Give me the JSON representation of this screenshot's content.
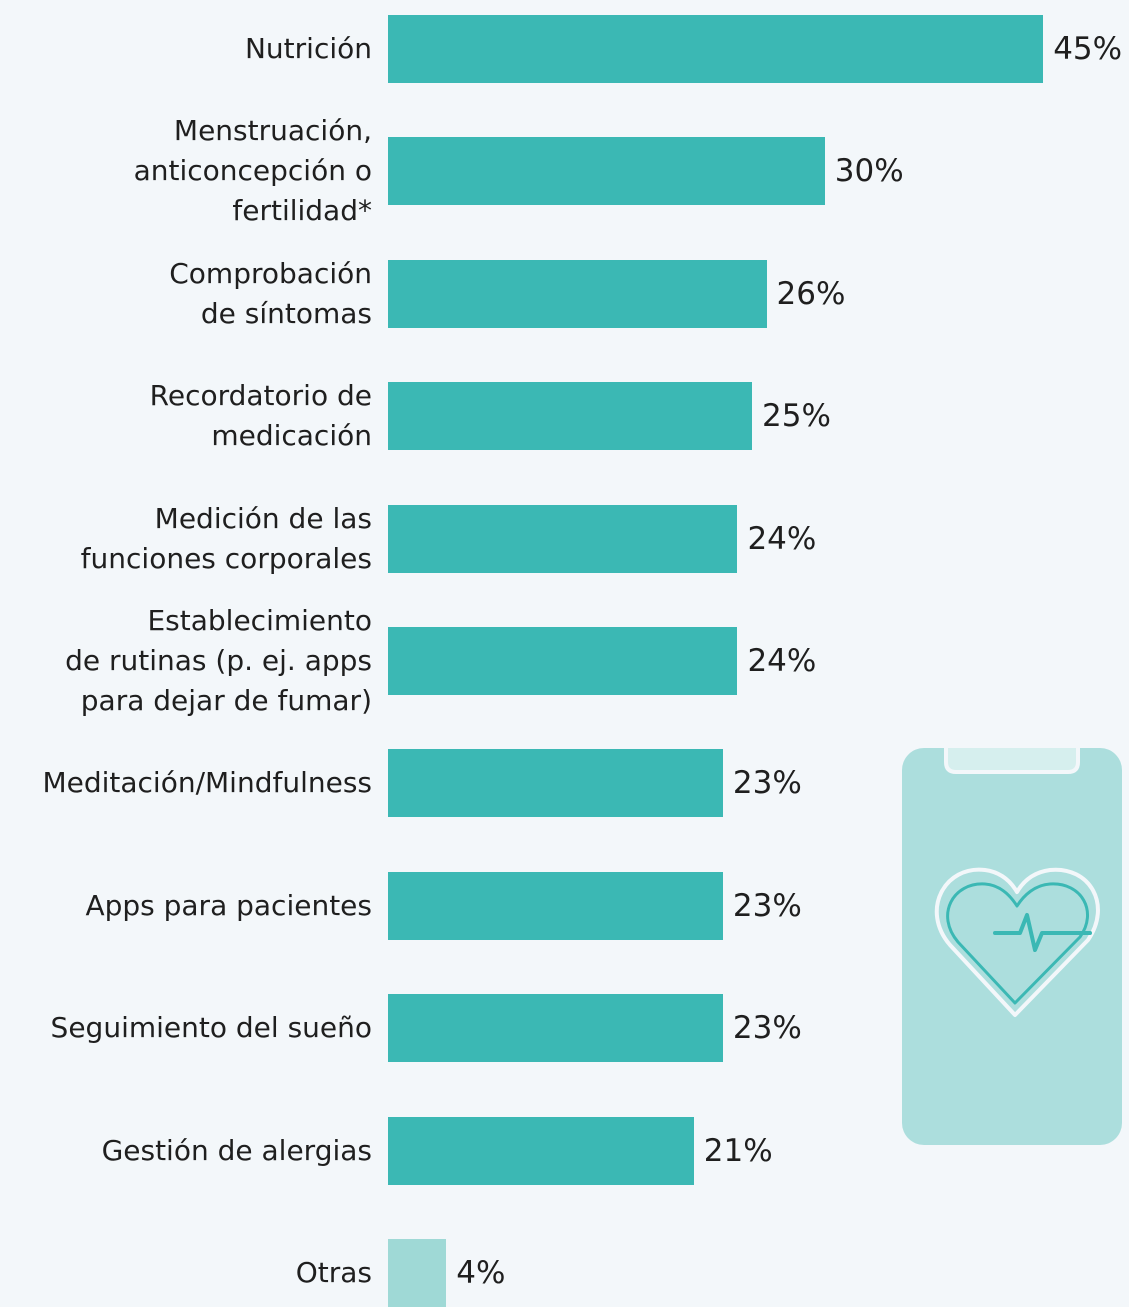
{
  "chart_data": {
    "type": "bar",
    "orientation": "horizontal",
    "categories": [
      "Nutrición",
      "Menstruación,\nanticoncepción o\nfertilidad*",
      "Comprobación\nde síntomas",
      "Recordatorio de\nmedicación",
      "Medición de las\nfunciones corporales",
      "Establecimiento\nde rutinas (p. ej. apps\npara dejar de fumar)",
      "Meditación/Mindfulness",
      "Apps para pacientes",
      "Seguimiento del sueño",
      "Gestión de alergias",
      "Otras"
    ],
    "values": [
      45,
      30,
      26,
      25,
      24,
      24,
      23,
      23,
      23,
      21,
      4
    ],
    "value_labels": [
      "45%",
      "30%",
      "26%",
      "25%",
      "24%",
      "24%",
      "23%",
      "23%",
      "23%",
      "21%",
      "4%"
    ],
    "colors": [
      "#3bb8b4",
      "#3bb8b4",
      "#3bb8b4",
      "#3bb8b4",
      "#3bb8b4",
      "#3bb8b4",
      "#3bb8b4",
      "#3bb8b4",
      "#3bb8b4",
      "#3bb8b4",
      "#9fd9d6"
    ]
  }
}
